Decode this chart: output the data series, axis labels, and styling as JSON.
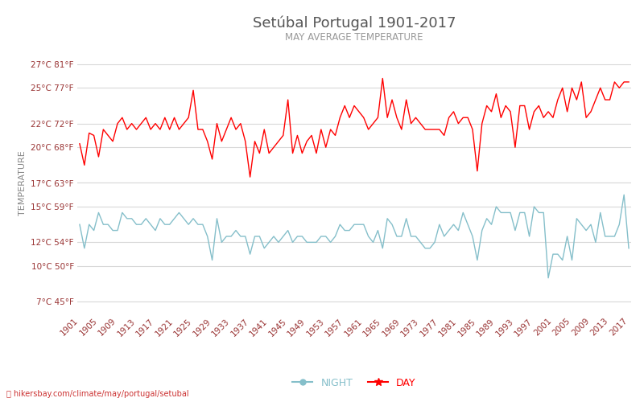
{
  "title": "Setúbal Portugal 1901-2017",
  "subtitle": "MAY AVERAGE TEMPERATURE",
  "ylabel": "TEMPERATURE",
  "footer": "hikersbay.com/climate/may/portugal/setubal",
  "years": [
    1901,
    1902,
    1903,
    1904,
    1905,
    1906,
    1907,
    1908,
    1909,
    1910,
    1911,
    1912,
    1913,
    1914,
    1915,
    1916,
    1917,
    1918,
    1919,
    1920,
    1921,
    1922,
    1923,
    1924,
    1925,
    1926,
    1927,
    1928,
    1929,
    1930,
    1931,
    1932,
    1933,
    1934,
    1935,
    1936,
    1937,
    1938,
    1939,
    1940,
    1941,
    1942,
    1943,
    1944,
    1945,
    1946,
    1947,
    1948,
    1949,
    1950,
    1951,
    1952,
    1953,
    1954,
    1955,
    1956,
    1957,
    1958,
    1959,
    1960,
    1961,
    1962,
    1963,
    1964,
    1965,
    1966,
    1967,
    1968,
    1969,
    1970,
    1971,
    1972,
    1973,
    1974,
    1975,
    1976,
    1977,
    1978,
    1979,
    1980,
    1981,
    1982,
    1983,
    1984,
    1985,
    1986,
    1987,
    1988,
    1989,
    1990,
    1991,
    1992,
    1993,
    1994,
    1995,
    1996,
    1997,
    1998,
    1999,
    2000,
    2001,
    2002,
    2003,
    2004,
    2005,
    2006,
    2007,
    2008,
    2009,
    2010,
    2011,
    2012,
    2013,
    2014,
    2015,
    2016,
    2017
  ],
  "day_temps": [
    20.3,
    18.5,
    21.2,
    21.0,
    19.2,
    21.5,
    21.0,
    20.5,
    22.0,
    22.5,
    21.5,
    22.0,
    21.5,
    22.0,
    22.5,
    21.5,
    22.0,
    21.5,
    22.5,
    21.5,
    22.5,
    21.5,
    22.0,
    22.5,
    24.8,
    21.5,
    21.5,
    20.5,
    19.0,
    22.0,
    20.5,
    21.5,
    22.5,
    21.5,
    22.0,
    20.5,
    17.5,
    20.5,
    19.5,
    21.5,
    19.5,
    20.0,
    20.5,
    21.0,
    24.0,
    19.5,
    21.0,
    19.5,
    20.5,
    21.0,
    19.5,
    21.5,
    20.0,
    21.5,
    21.0,
    22.5,
    23.5,
    22.5,
    23.5,
    23.0,
    22.5,
    21.5,
    22.0,
    22.5,
    25.8,
    22.5,
    24.0,
    22.5,
    21.5,
    24.0,
    22.0,
    22.5,
    22.0,
    21.5,
    21.5,
    21.5,
    21.5,
    21.0,
    22.5,
    23.0,
    22.0,
    22.5,
    22.5,
    21.5,
    18.0,
    22.0,
    23.5,
    23.0,
    24.5,
    22.5,
    23.5,
    23.0,
    20.0,
    23.5,
    23.5,
    21.5,
    23.0,
    23.5,
    22.5,
    23.0,
    22.5,
    24.0,
    25.0,
    23.0,
    25.0,
    24.0,
    25.5,
    22.5,
    23.0,
    24.0,
    25.0,
    24.0,
    24.0,
    25.5,
    25.0,
    25.5,
    25.5
  ],
  "night_temps": [
    13.5,
    11.5,
    13.5,
    13.0,
    14.5,
    13.5,
    13.5,
    13.0,
    13.0,
    14.5,
    14.0,
    14.0,
    13.5,
    13.5,
    14.0,
    13.5,
    13.0,
    14.0,
    13.5,
    13.5,
    14.0,
    14.5,
    14.0,
    13.5,
    14.0,
    13.5,
    13.5,
    12.5,
    10.5,
    14.0,
    12.0,
    12.5,
    12.5,
    13.0,
    12.5,
    12.5,
    11.0,
    12.5,
    12.5,
    11.5,
    12.0,
    12.5,
    12.0,
    12.5,
    13.0,
    12.0,
    12.5,
    12.5,
    12.0,
    12.0,
    12.0,
    12.5,
    12.5,
    12.0,
    12.5,
    13.5,
    13.0,
    13.0,
    13.5,
    13.5,
    13.5,
    12.5,
    12.0,
    13.0,
    11.5,
    14.0,
    13.5,
    12.5,
    12.5,
    14.0,
    12.5,
    12.5,
    12.0,
    11.5,
    11.5,
    12.0,
    13.5,
    12.5,
    13.0,
    13.5,
    13.0,
    14.5,
    13.5,
    12.5,
    10.5,
    13.0,
    14.0,
    13.5,
    15.0,
    14.5,
    14.5,
    14.5,
    13.0,
    14.5,
    14.5,
    12.5,
    15.0,
    14.5,
    14.5,
    9.0,
    11.0,
    11.0,
    10.5,
    12.5,
    10.5,
    14.0,
    13.5,
    13.0,
    13.5,
    12.0,
    14.5,
    12.5,
    12.5,
    12.5,
    13.5,
    16.0,
    11.5
  ],
  "yticks_c": [
    7,
    10,
    12,
    15,
    17,
    20,
    22,
    25,
    27
  ],
  "yticks_f": [
    45,
    50,
    54,
    59,
    63,
    68,
    72,
    77,
    81
  ],
  "ylim": [
    6,
    28
  ],
  "day_color": "#ff0000",
  "night_color": "#85bfca",
  "background_color": "#ffffff",
  "grid_color": "#d8d8d8",
  "title_color": "#555555",
  "subtitle_color": "#999999",
  "tick_label_color": "#993333",
  "ylabel_color": "#888888",
  "legend_night_color": "#85bfca",
  "legend_day_color": "#ff0000",
  "footer_color": "#cc3333",
  "xtick_years": [
    1901,
    1905,
    1909,
    1913,
    1917,
    1921,
    1925,
    1929,
    1933,
    1937,
    1941,
    1945,
    1949,
    1953,
    1957,
    1961,
    1965,
    1969,
    1973,
    1977,
    1981,
    1985,
    1989,
    1993,
    1997,
    2001,
    2005,
    2009,
    2013,
    2017
  ]
}
